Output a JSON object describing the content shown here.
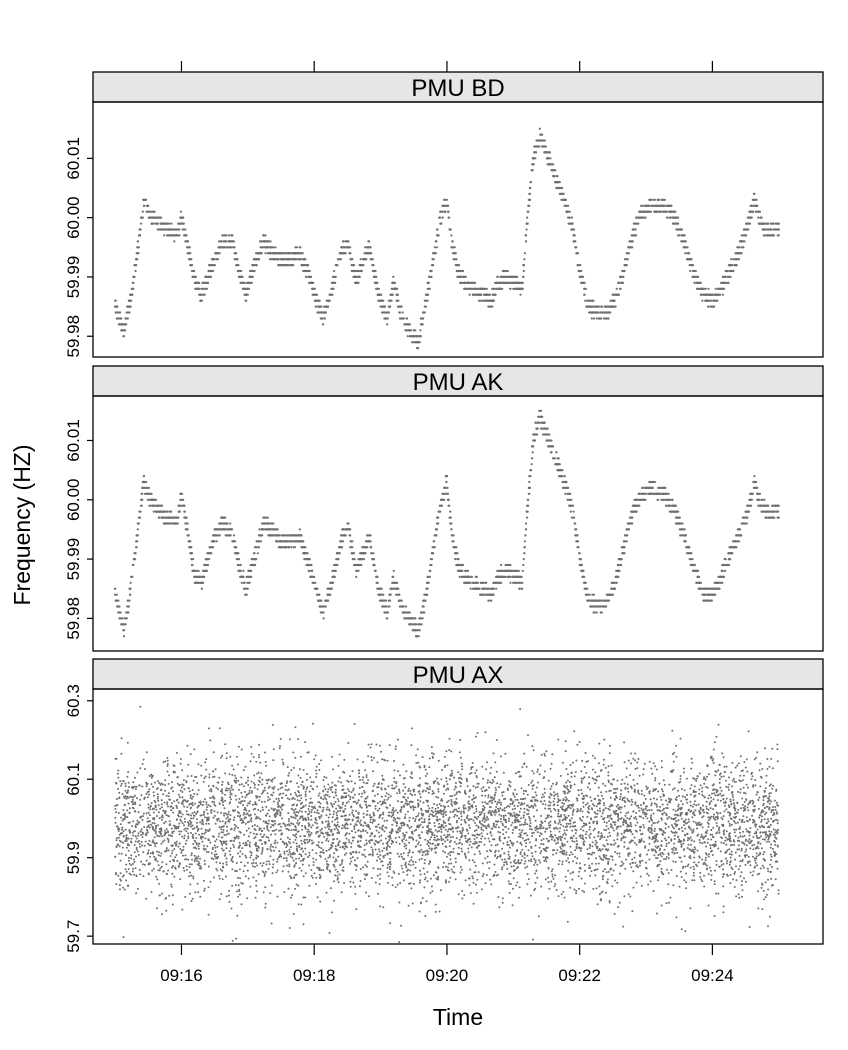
{
  "chart_data": {
    "type": "scatter",
    "layout": "lattice-stacked-panels",
    "xlabel": "Time",
    "ylabel": "Frequency (HZ)",
    "xrange": [
      "09:14:40",
      "09:25:40"
    ],
    "xticks": [
      "09:16",
      "09:18",
      "09:20",
      "09:22",
      "09:24"
    ],
    "point_color": "#707070",
    "strip_color": "#e6e6e6",
    "panels": [
      {
        "name": "PMU BD",
        "ylim": [
          59.9765,
          60.0195
        ],
        "yticks": [
          "59.98",
          "59.99",
          "60.00",
          "60.01"
        ],
        "noise": 0.0012,
        "series": [
          [
            "09:15:00",
            59.985
          ],
          [
            "09:15:08",
            59.981
          ],
          [
            "09:15:14",
            59.986
          ],
          [
            "09:15:20",
            59.994
          ],
          [
            "09:15:26",
            60.003
          ],
          [
            "09:15:32",
            60.0
          ],
          [
            "09:15:40",
            59.999
          ],
          [
            "09:15:48",
            59.998
          ],
          [
            "09:15:56",
            59.997
          ],
          [
            "09:16:00",
            60.0
          ],
          [
            "09:16:06",
            59.995
          ],
          [
            "09:16:12",
            59.989
          ],
          [
            "09:16:18",
            59.987
          ],
          [
            "09:16:24",
            59.99
          ],
          [
            "09:16:30",
            59.993
          ],
          [
            "09:16:38",
            59.996
          ],
          [
            "09:16:46",
            59.996
          ],
          [
            "09:16:52",
            59.991
          ],
          [
            "09:16:58",
            59.987
          ],
          [
            "09:17:06",
            59.992
          ],
          [
            "09:17:14",
            59.996
          ],
          [
            "09:17:22",
            59.994
          ],
          [
            "09:17:30",
            59.993
          ],
          [
            "09:17:38",
            59.993
          ],
          [
            "09:17:46",
            59.994
          ],
          [
            "09:17:54",
            59.991
          ],
          [
            "09:18:00",
            59.987
          ],
          [
            "09:18:08",
            59.983
          ],
          [
            "09:18:16",
            59.988
          ],
          [
            "09:18:24",
            59.994
          ],
          [
            "09:18:30",
            59.996
          ],
          [
            "09:18:38",
            59.989
          ],
          [
            "09:18:44",
            59.993
          ],
          [
            "09:18:50",
            59.995
          ],
          [
            "09:18:58",
            59.987
          ],
          [
            "09:19:06",
            59.983
          ],
          [
            "09:19:12",
            59.989
          ],
          [
            "09:19:18",
            59.984
          ],
          [
            "09:19:26",
            59.981
          ],
          [
            "09:19:34",
            59.979
          ],
          [
            "09:19:40",
            59.985
          ],
          [
            "09:19:48",
            59.993
          ],
          [
            "09:19:54",
            60.0
          ],
          [
            "09:20:00",
            60.003
          ],
          [
            "09:20:04",
            59.996
          ],
          [
            "09:20:10",
            59.991
          ],
          [
            "09:20:16",
            59.989
          ],
          [
            "09:20:24",
            59.988
          ],
          [
            "09:20:32",
            59.987
          ],
          [
            "09:20:40",
            59.986
          ],
          [
            "09:20:46",
            59.989
          ],
          [
            "09:20:54",
            59.99
          ],
          [
            "09:21:02",
            59.989
          ],
          [
            "09:21:08",
            59.988
          ],
          [
            "09:21:12",
            59.998
          ],
          [
            "09:21:18",
            60.01
          ],
          [
            "09:21:24",
            60.014
          ],
          [
            "09:21:32",
            60.01
          ],
          [
            "09:21:40",
            60.006
          ],
          [
            "09:21:48",
            60.002
          ],
          [
            "09:21:54",
            59.998
          ],
          [
            "09:22:00",
            59.991
          ],
          [
            "09:22:08",
            59.985
          ],
          [
            "09:22:16",
            59.984
          ],
          [
            "09:22:24",
            59.984
          ],
          [
            "09:22:32",
            59.986
          ],
          [
            "09:22:40",
            59.991
          ],
          [
            "09:22:48",
            59.997
          ],
          [
            "09:22:56",
            60.001
          ],
          [
            "09:23:06",
            60.002
          ],
          [
            "09:23:16",
            60.002
          ],
          [
            "09:23:26",
            60.0
          ],
          [
            "09:23:36",
            59.995
          ],
          [
            "09:23:44",
            59.99
          ],
          [
            "09:23:52",
            59.987
          ],
          [
            "09:24:00",
            59.986
          ],
          [
            "09:24:08",
            59.988
          ],
          [
            "09:24:16",
            59.991
          ],
          [
            "09:24:24",
            59.994
          ],
          [
            "09:24:32",
            59.999
          ],
          [
            "09:24:38",
            60.003
          ],
          [
            "09:24:44",
            59.999
          ],
          [
            "09:24:50",
            59.998
          ],
          [
            "09:25:00",
            59.998
          ]
        ]
      },
      {
        "name": "PMU AK",
        "ylim": [
          59.9745,
          60.0175
        ],
        "yticks": [
          "59.98",
          "59.99",
          "60.00",
          "60.01"
        ],
        "noise": 0.0012,
        "series": [
          [
            "09:15:00",
            59.984
          ],
          [
            "09:15:08",
            59.978
          ],
          [
            "09:15:14",
            59.985
          ],
          [
            "09:15:20",
            59.994
          ],
          [
            "09:15:26",
            60.003
          ],
          [
            "09:15:32",
            60.0
          ],
          [
            "09:15:40",
            59.998
          ],
          [
            "09:15:48",
            59.997
          ],
          [
            "09:15:56",
            59.996
          ],
          [
            "09:16:00",
            60.001
          ],
          [
            "09:16:06",
            59.994
          ],
          [
            "09:16:12",
            59.987
          ],
          [
            "09:16:18",
            59.986
          ],
          [
            "09:16:24",
            59.99
          ],
          [
            "09:16:30",
            59.994
          ],
          [
            "09:16:38",
            59.996
          ],
          [
            "09:16:46",
            59.994
          ],
          [
            "09:16:52",
            59.989
          ],
          [
            "09:16:58",
            59.985
          ],
          [
            "09:17:06",
            59.99
          ],
          [
            "09:17:14",
            59.996
          ],
          [
            "09:17:22",
            59.995
          ],
          [
            "09:17:30",
            59.993
          ],
          [
            "09:17:38",
            59.993
          ],
          [
            "09:17:46",
            59.994
          ],
          [
            "09:17:54",
            59.99
          ],
          [
            "09:18:00",
            59.986
          ],
          [
            "09:18:08",
            59.981
          ],
          [
            "09:18:16",
            59.986
          ],
          [
            "09:18:24",
            59.993
          ],
          [
            "09:18:30",
            59.996
          ],
          [
            "09:18:38",
            59.988
          ],
          [
            "09:18:44",
            59.991
          ],
          [
            "09:18:50",
            59.994
          ],
          [
            "09:18:58",
            59.985
          ],
          [
            "09:19:06",
            59.981
          ],
          [
            "09:19:12",
            59.987
          ],
          [
            "09:19:18",
            59.982
          ],
          [
            "09:19:26",
            59.98
          ],
          [
            "09:19:34",
            59.978
          ],
          [
            "09:19:40",
            59.983
          ],
          [
            "09:19:48",
            59.992
          ],
          [
            "09:19:54",
            59.999
          ],
          [
            "09:20:00",
            60.003
          ],
          [
            "09:20:04",
            59.995
          ],
          [
            "09:20:10",
            59.989
          ],
          [
            "09:20:16",
            59.987
          ],
          [
            "09:20:24",
            59.986
          ],
          [
            "09:20:32",
            59.985
          ],
          [
            "09:20:40",
            59.984
          ],
          [
            "09:20:46",
            59.987
          ],
          [
            "09:20:54",
            59.988
          ],
          [
            "09:21:02",
            59.987
          ],
          [
            "09:21:08",
            59.986
          ],
          [
            "09:21:12",
            59.997
          ],
          [
            "09:21:18",
            60.01
          ],
          [
            "09:21:24",
            60.014
          ],
          [
            "09:21:32",
            60.01
          ],
          [
            "09:21:40",
            60.006
          ],
          [
            "09:21:48",
            60.002
          ],
          [
            "09:21:54",
            59.998
          ],
          [
            "09:22:00",
            59.99
          ],
          [
            "09:22:08",
            59.983
          ],
          [
            "09:22:16",
            59.982
          ],
          [
            "09:22:24",
            59.983
          ],
          [
            "09:22:32",
            59.986
          ],
          [
            "09:22:40",
            59.992
          ],
          [
            "09:22:48",
            59.998
          ],
          [
            "09:22:56",
            60.001
          ],
          [
            "09:23:06",
            60.002
          ],
          [
            "09:23:16",
            60.001
          ],
          [
            "09:23:26",
            59.998
          ],
          [
            "09:23:36",
            59.993
          ],
          [
            "09:23:44",
            59.988
          ],
          [
            "09:23:52",
            59.984
          ],
          [
            "09:24:00",
            59.984
          ],
          [
            "09:24:08",
            59.987
          ],
          [
            "09:24:16",
            59.991
          ],
          [
            "09:24:24",
            59.994
          ],
          [
            "09:24:32",
            59.998
          ],
          [
            "09:24:38",
            60.003
          ],
          [
            "09:24:44",
            59.999
          ],
          [
            "09:24:50",
            59.998
          ],
          [
            "09:25:00",
            59.998
          ]
        ]
      },
      {
        "name": "PMU AX",
        "ylim": [
          59.68,
          60.33
        ],
        "yticks": [
          "59.7",
          "59.9",
          "60.1",
          "60.3"
        ],
        "noise_mean": 59.985,
        "noise_sd": 0.085,
        "points_count": 6000,
        "series": []
      }
    ]
  }
}
